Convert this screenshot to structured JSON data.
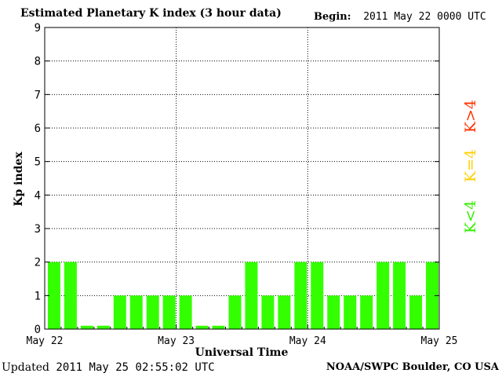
{
  "header": {
    "title": "Estimated Planetary K index (3 hour data)",
    "begin_label": "Begin:",
    "begin_value": "2011 May 22 0000 UTC"
  },
  "footer": {
    "updated_label": "Updated",
    "updated_value": "2011 May 25 02:55:02 UTC",
    "credit": "NOAA/SWPC Boulder, CO USA"
  },
  "legend": [
    {
      "label": "K>4",
      "color": "#ff3300"
    },
    {
      "label": "K=4",
      "color": "#ffd000"
    },
    {
      "label": "K<4",
      "color": "#33ee00"
    }
  ],
  "chart_data": {
    "type": "bar",
    "title": "Estimated Planetary K index (3 hour data)",
    "xlabel": "Universal Time",
    "ylabel": "Kp index",
    "ylim": [
      0,
      9
    ],
    "yticks": [
      0,
      1,
      2,
      3,
      4,
      5,
      6,
      7,
      8,
      9
    ],
    "xticks": [
      "May 22",
      "May 23",
      "May 24",
      "May 25"
    ],
    "bars_per_day": 8,
    "values": [
      2,
      2,
      0.1,
      0.1,
      1,
      1,
      1,
      1,
      1,
      0.1,
      0.1,
      1,
      2,
      1,
      1,
      2,
      2,
      1,
      1,
      1,
      2,
      2,
      1,
      2
    ],
    "bar_color": "#33ff00",
    "grid": true
  }
}
